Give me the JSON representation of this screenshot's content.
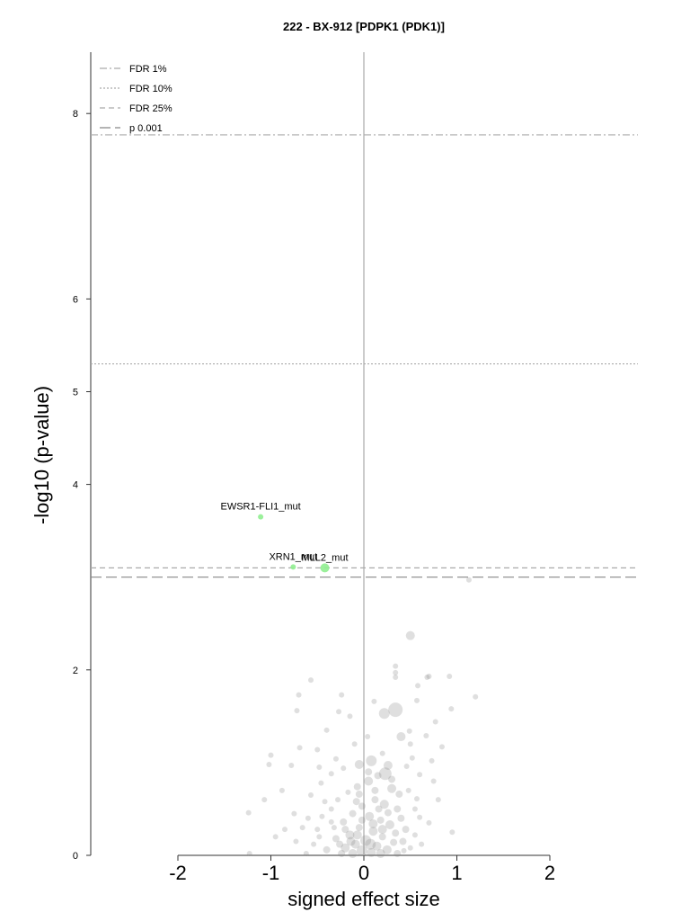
{
  "chart_data": {
    "type": "scatter",
    "title": "222 - BX-912 [PDPK1 (PDK1)]",
    "xlabel": "signed effect size",
    "ylabel": "-log10 (p-value)",
    "xlim": [
      -2.95,
      2.95
    ],
    "ylim": [
      0,
      8.65
    ],
    "x_ticks": [
      -2,
      -1,
      0,
      1,
      2
    ],
    "y_ticks": [
      0,
      2,
      4,
      5,
      6,
      8
    ],
    "grid": false,
    "legend_position": "top-left",
    "thresholds": [
      {
        "name": "FDR 1%",
        "y": 7.77,
        "style": "dashdot",
        "color": "#aaaaaa"
      },
      {
        "name": "FDR 10%",
        "y": 5.3,
        "style": "dotted",
        "color": "#aaaaaa"
      },
      {
        "name": "FDR 25%",
        "y": 3.1,
        "style": "dashed",
        "color": "#aaaaaa"
      },
      {
        "name": "p 0.001",
        "y": 3.0,
        "style": "longdash",
        "color": "#888888"
      }
    ],
    "highlighted_points": [
      {
        "label": "EWSR1-FLI1_mut",
        "x": -1.11,
        "y": 3.65,
        "size": 3,
        "color": "#90ee90"
      },
      {
        "label": "XRN1_mut",
        "x": -0.76,
        "y": 3.11,
        "size": 3,
        "color": "#90ee90"
      },
      {
        "label": "MLL2_mut",
        "x": -0.42,
        "y": 3.1,
        "size": 5,
        "color": "#90ee90"
      }
    ],
    "background_points": [
      {
        "x": 0.5,
        "y": 2.37,
        "size": 5
      },
      {
        "x": 1.13,
        "y": 2.97,
        "size": 3
      },
      {
        "x": 0.34,
        "y": 1.57,
        "size": 8
      },
      {
        "x": 0.22,
        "y": 1.53,
        "size": 6
      },
      {
        "x": -0.57,
        "y": 1.89,
        "size": 3
      },
      {
        "x": -0.7,
        "y": 1.73,
        "size": 3
      },
      {
        "x": 0.34,
        "y": 1.97,
        "size": 3
      },
      {
        "x": 0.34,
        "y": 1.92,
        "size": 3
      },
      {
        "x": 0.68,
        "y": 1.92,
        "size": 3
      },
      {
        "x": 0.7,
        "y": 1.93,
        "size": 3
      },
      {
        "x": 0.92,
        "y": 1.93,
        "size": 3
      },
      {
        "x": 0.58,
        "y": 1.83,
        "size": 3
      },
      {
        "x": 0.34,
        "y": 2.04,
        "size": 3
      },
      {
        "x": 1.2,
        "y": 1.71,
        "size": 3
      },
      {
        "x": 0.57,
        "y": 1.67,
        "size": 3
      },
      {
        "x": 0.94,
        "y": 1.58,
        "size": 3
      },
      {
        "x": -0.72,
        "y": 1.56,
        "size": 3
      },
      {
        "x": -0.27,
        "y": 1.55,
        "size": 3
      },
      {
        "x": -0.24,
        "y": 1.73,
        "size": 3
      },
      {
        "x": 0.11,
        "y": 1.66,
        "size": 3
      },
      {
        "x": -0.69,
        "y": 1.16,
        "size": 3
      },
      {
        "x": -1.0,
        "y": 1.08,
        "size": 3
      },
      {
        "x": -1.07,
        "y": 0.6,
        "size": 3
      },
      {
        "x": -1.24,
        "y": 0.46,
        "size": 3
      },
      {
        "x": -1.02,
        "y": 0.98,
        "size": 3
      },
      {
        "x": -0.78,
        "y": 0.97,
        "size": 3
      },
      {
        "x": -0.46,
        "y": 0.78,
        "size": 3
      },
      {
        "x": -0.57,
        "y": 0.65,
        "size": 3
      },
      {
        "x": -0.75,
        "y": 0.45,
        "size": 3
      },
      {
        "x": -0.66,
        "y": 0.3,
        "size": 3
      },
      {
        "x": -0.73,
        "y": 0.15,
        "size": 3
      },
      {
        "x": -0.85,
        "y": 0.28,
        "size": 3
      },
      {
        "x": -0.5,
        "y": 0.28,
        "size": 3
      },
      {
        "x": -0.35,
        "y": 0.36,
        "size": 3
      },
      {
        "x": -0.54,
        "y": 0.12,
        "size": 3
      },
      {
        "x": -1.23,
        "y": 0.02,
        "size": 3
      },
      {
        "x": 0.84,
        "y": 1.17,
        "size": 3
      },
      {
        "x": 0.77,
        "y": 1.44,
        "size": 3
      },
      {
        "x": 0.67,
        "y": 1.29,
        "size": 3
      },
      {
        "x": 0.5,
        "y": 1.2,
        "size": 3
      },
      {
        "x": 0.4,
        "y": 1.28,
        "size": 5
      },
      {
        "x": 0.49,
        "y": 1.34,
        "size": 3
      },
      {
        "x": 0.46,
        "y": 0.96,
        "size": 3
      },
      {
        "x": 0.6,
        "y": 0.87,
        "size": 3
      },
      {
        "x": 0.73,
        "y": 1.02,
        "size": 3
      },
      {
        "x": 0.75,
        "y": 0.8,
        "size": 3
      },
      {
        "x": 0.57,
        "y": 0.61,
        "size": 3
      },
      {
        "x": 0.6,
        "y": 0.41,
        "size": 3
      },
      {
        "x": 0.55,
        "y": 0.22,
        "size": 3
      },
      {
        "x": 0.43,
        "y": 0.05,
        "size": 3
      },
      {
        "x": -0.4,
        "y": 1.35,
        "size": 3
      },
      {
        "x": -0.5,
        "y": 1.14,
        "size": 3
      },
      {
        "x": -0.3,
        "y": 1.04,
        "size": 3
      },
      {
        "x": -0.22,
        "y": 0.94,
        "size": 3
      },
      {
        "x": -0.35,
        "y": 0.88,
        "size": 3
      },
      {
        "x": 0.04,
        "y": 1.28,
        "size": 3
      },
      {
        "x": -0.1,
        "y": 1.2,
        "size": 3
      },
      {
        "x": 0.2,
        "y": 1.1,
        "size": 3
      },
      {
        "x": 0.08,
        "y": 1.02,
        "size": 6
      },
      {
        "x": -0.05,
        "y": 0.98,
        "size": 5
      },
      {
        "x": 0.26,
        "y": 0.97,
        "size": 5
      },
      {
        "x": 0.23,
        "y": 0.88,
        "size": 7
      },
      {
        "x": 0.15,
        "y": 0.86,
        "size": 4
      },
      {
        "x": 0.05,
        "y": 0.8,
        "size": 5
      },
      {
        "x": -0.07,
        "y": 0.74,
        "size": 4
      },
      {
        "x": 0.3,
        "y": 0.72,
        "size": 5
      },
      {
        "x": 0.38,
        "y": 0.66,
        "size": 4
      },
      {
        "x": -0.17,
        "y": 0.68,
        "size": 3
      },
      {
        "x": -0.28,
        "y": 0.6,
        "size": 3
      },
      {
        "x": 0.12,
        "y": 0.6,
        "size": 4
      },
      {
        "x": 0.22,
        "y": 0.55,
        "size": 5
      },
      {
        "x": -0.02,
        "y": 0.53,
        "size": 4
      },
      {
        "x": 0.36,
        "y": 0.5,
        "size": 4
      },
      {
        "x": -0.12,
        "y": 0.45,
        "size": 4
      },
      {
        "x": 0.06,
        "y": 0.42,
        "size": 5
      },
      {
        "x": 0.18,
        "y": 0.38,
        "size": 4
      },
      {
        "x": -0.22,
        "y": 0.36,
        "size": 4
      },
      {
        "x": 0.28,
        "y": 0.33,
        "size": 5
      },
      {
        "x": -0.05,
        "y": 0.3,
        "size": 4
      },
      {
        "x": 0.1,
        "y": 0.26,
        "size": 5
      },
      {
        "x": 0.45,
        "y": 0.28,
        "size": 4
      },
      {
        "x": -0.15,
        "y": 0.22,
        "size": 5
      },
      {
        "x": 0.2,
        "y": 0.2,
        "size": 4
      },
      {
        "x": -0.3,
        "y": 0.18,
        "size": 4
      },
      {
        "x": 0.02,
        "y": 0.16,
        "size": 6
      },
      {
        "x": 0.32,
        "y": 0.14,
        "size": 4
      },
      {
        "x": -0.09,
        "y": 0.12,
        "size": 5
      },
      {
        "x": 0.14,
        "y": 0.1,
        "size": 5
      },
      {
        "x": -0.2,
        "y": 0.08,
        "size": 5
      },
      {
        "x": 0.25,
        "y": 0.06,
        "size": 5
      },
      {
        "x": -0.02,
        "y": 0.05,
        "size": 6
      },
      {
        "x": 0.08,
        "y": 0.03,
        "size": 5
      },
      {
        "x": -0.12,
        "y": 0.02,
        "size": 5
      },
      {
        "x": 0.18,
        "y": 0.02,
        "size": 5
      },
      {
        "x": -0.24,
        "y": 0.02,
        "size": 4
      },
      {
        "x": 0.36,
        "y": 0.02,
        "size": 4
      },
      {
        "x": -0.4,
        "y": 0.06,
        "size": 4
      },
      {
        "x": 0.5,
        "y": 0.08,
        "size": 3
      },
      {
        "x": -0.35,
        "y": 0.5,
        "size": 3
      },
      {
        "x": -0.45,
        "y": 0.42,
        "size": 3
      },
      {
        "x": 0.3,
        "y": 0.82,
        "size": 4
      },
      {
        "x": 0.12,
        "y": 0.7,
        "size": 4
      },
      {
        "x": -0.08,
        "y": 0.58,
        "size": 4
      },
      {
        "x": 0.4,
        "y": 0.4,
        "size": 4
      },
      {
        "x": 0.05,
        "y": 0.9,
        "size": 4
      },
      {
        "x": -0.2,
        "y": 0.28,
        "size": 4
      },
      {
        "x": 0.26,
        "y": 0.46,
        "size": 4
      },
      {
        "x": -0.02,
        "y": 0.38,
        "size": 4
      },
      {
        "x": 0.16,
        "y": 0.5,
        "size": 4
      },
      {
        "x": 0.34,
        "y": 0.24,
        "size": 4
      },
      {
        "x": -0.26,
        "y": 0.12,
        "size": 4
      },
      {
        "x": 0.42,
        "y": 0.15,
        "size": 4
      },
      {
        "x": -0.05,
        "y": 0.66,
        "size": 4
      },
      {
        "x": 0.1,
        "y": 0.34,
        "size": 5
      },
      {
        "x": -0.14,
        "y": 0.15,
        "size": 5
      },
      {
        "x": 0.2,
        "y": 0.28,
        "size": 5
      },
      {
        "x": -0.07,
        "y": 0.22,
        "size": 5
      },
      {
        "x": 0.07,
        "y": 0.12,
        "size": 6
      },
      {
        "x": -0.32,
        "y": 0.3,
        "size": 3
      },
      {
        "x": 0.55,
        "y": 0.5,
        "size": 3
      },
      {
        "x": -0.48,
        "y": 0.2,
        "size": 3
      },
      {
        "x": 0.62,
        "y": 0.12,
        "size": 3
      },
      {
        "x": -0.62,
        "y": 0.02,
        "size": 3
      },
      {
        "x": 0.48,
        "y": 0.7,
        "size": 3
      },
      {
        "x": -0.42,
        "y": 0.58,
        "size": 3
      },
      {
        "x": 0.7,
        "y": 0.35,
        "size": 3
      },
      {
        "x": -0.6,
        "y": 0.4,
        "size": 3
      },
      {
        "x": 0.52,
        "y": 1.05,
        "size": 3
      },
      {
        "x": -0.48,
        "y": 0.95,
        "size": 3
      },
      {
        "x": -0.15,
        "y": 1.5,
        "size": 3
      },
      {
        "x": 0.8,
        "y": 0.6,
        "size": 3
      },
      {
        "x": -0.88,
        "y": 0.7,
        "size": 3
      },
      {
        "x": 0.95,
        "y": 0.25,
        "size": 3
      },
      {
        "x": -0.95,
        "y": 0.2,
        "size": 3
      }
    ],
    "point_color": "#7f7f7f",
    "point_opacity": 0.25
  }
}
